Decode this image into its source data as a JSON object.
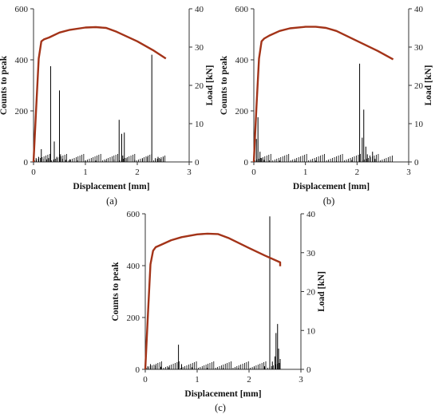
{
  "figure": {
    "panel_labels": [
      "(a)",
      "(b)",
      "(c)"
    ]
  },
  "chart_data": [
    {
      "type": "line",
      "panel": "(a)",
      "xlabel": "Displacement [mm]",
      "ylabel": "Counts to peak",
      "y2label": "Load [kN]",
      "xlim": [
        0,
        3
      ],
      "ylim": [
        0,
        600
      ],
      "y2lim": [
        0,
        40
      ],
      "xticks": [
        "0",
        "1",
        "2",
        "3"
      ],
      "yticks": [
        "0",
        "200",
        "400",
        "600"
      ],
      "y2ticks": [
        "0",
        "10",
        "20",
        "30",
        "40"
      ],
      "series": [
        {
          "kind": "spikes",
          "axis": "left",
          "color": "#000000",
          "x": [
            0.05,
            0.1,
            0.15,
            0.2,
            0.25,
            0.29,
            0.33,
            0.4,
            0.45,
            0.5,
            0.52,
            0.56,
            0.62,
            0.7,
            0.85,
            1.0,
            1.2,
            1.4,
            1.55,
            1.65,
            1.7,
            1.72,
            1.75,
            1.8,
            1.95,
            2.1,
            2.2,
            2.28,
            2.35,
            2.4,
            2.45,
            2.5
          ],
          "y": [
            15,
            20,
            50,
            12,
            10,
            15,
            375,
            80,
            20,
            280,
            30,
            12,
            8,
            10,
            6,
            6,
            5,
            6,
            10,
            165,
            110,
            25,
            115,
            15,
            8,
            12,
            20,
            420,
            15,
            20,
            12,
            18
          ]
        },
        {
          "kind": "line",
          "axis": "right",
          "color": "#a33318",
          "x": [
            0,
            0.05,
            0.1,
            0.15,
            0.2,
            0.3,
            0.5,
            0.7,
            1.0,
            1.2,
            1.4,
            1.6,
            2.0,
            2.3,
            2.55
          ],
          "y": [
            0,
            14,
            27,
            31.5,
            32,
            32.5,
            33.8,
            34.5,
            35.1,
            35.2,
            35,
            34,
            31.5,
            29.2,
            27
          ]
        }
      ]
    },
    {
      "type": "line",
      "panel": "(b)",
      "xlabel": "Displacement [mm]",
      "ylabel": "Counts to peak",
      "y2label": "Load [kN]",
      "xlim": [
        0,
        3
      ],
      "ylim": [
        0,
        600
      ],
      "y2lim": [
        0,
        40
      ],
      "xticks": [
        "0",
        "1",
        "2",
        "3"
      ],
      "yticks": [
        "0",
        "200",
        "400",
        "600"
      ],
      "y2ticks": [
        "0",
        "10",
        "20",
        "30",
        "40"
      ],
      "series": [
        {
          "kind": "spikes",
          "axis": "left",
          "color": "#000000",
          "x": [
            0.05,
            0.08,
            0.12,
            0.15,
            0.2,
            0.3,
            0.5,
            0.8,
            1.2,
            1.6,
            1.9,
            2.05,
            2.1,
            2.13,
            2.17,
            2.2,
            2.25,
            2.3,
            2.35
          ],
          "y": [
            90,
            175,
            40,
            15,
            8,
            6,
            5,
            5,
            5,
            5,
            8,
            385,
            95,
            205,
            60,
            30,
            25,
            40,
            12
          ]
        },
        {
          "kind": "line",
          "axis": "right",
          "color": "#a33318",
          "x": [
            0,
            0.05,
            0.1,
            0.15,
            0.2,
            0.3,
            0.5,
            0.7,
            1.0,
            1.2,
            1.4,
            1.6,
            2.0,
            2.4,
            2.7
          ],
          "y": [
            0,
            14,
            27,
            31.5,
            32.2,
            33,
            34.2,
            34.9,
            35.3,
            35.3,
            35,
            34.2,
            31.6,
            29,
            26.8
          ]
        }
      ]
    },
    {
      "type": "line",
      "panel": "(c)",
      "xlabel": "Displacement [mm]",
      "ylabel": "Counts to peak",
      "y2label": "Load [kN]",
      "xlim": [
        0,
        3
      ],
      "ylim": [
        0,
        600
      ],
      "y2lim": [
        0,
        40
      ],
      "xticks": [
        "0",
        "1",
        "2",
        "3"
      ],
      "yticks": [
        "0",
        "200",
        "400",
        "600"
      ],
      "y2ticks": [
        "0",
        "10",
        "20",
        "30",
        "40"
      ],
      "series": [
        {
          "kind": "spikes",
          "axis": "left",
          "color": "#000000",
          "x": [
            0.05,
            0.1,
            0.2,
            0.3,
            0.45,
            0.64,
            0.7,
            0.9,
            1.2,
            1.5,
            1.8,
            2.1,
            2.3,
            2.4,
            2.45,
            2.5,
            2.52,
            2.55,
            2.57,
            2.6
          ],
          "y": [
            12,
            20,
            15,
            10,
            8,
            95,
            20,
            8,
            6,
            5,
            6,
            8,
            12,
            590,
            30,
            50,
            140,
            175,
            80,
            40
          ]
        },
        {
          "kind": "line",
          "axis": "right",
          "color": "#a33318",
          "x": [
            0,
            0.05,
            0.1,
            0.15,
            0.2,
            0.3,
            0.5,
            0.7,
            1.0,
            1.2,
            1.4,
            1.6,
            2.0,
            2.3,
            2.6,
            2.6
          ],
          "y": [
            0,
            14,
            27,
            30.5,
            31.4,
            32,
            33.2,
            34,
            34.7,
            34.9,
            34.8,
            33.8,
            31.2,
            29.3,
            27.5,
            26.5
          ]
        }
      ]
    }
  ]
}
